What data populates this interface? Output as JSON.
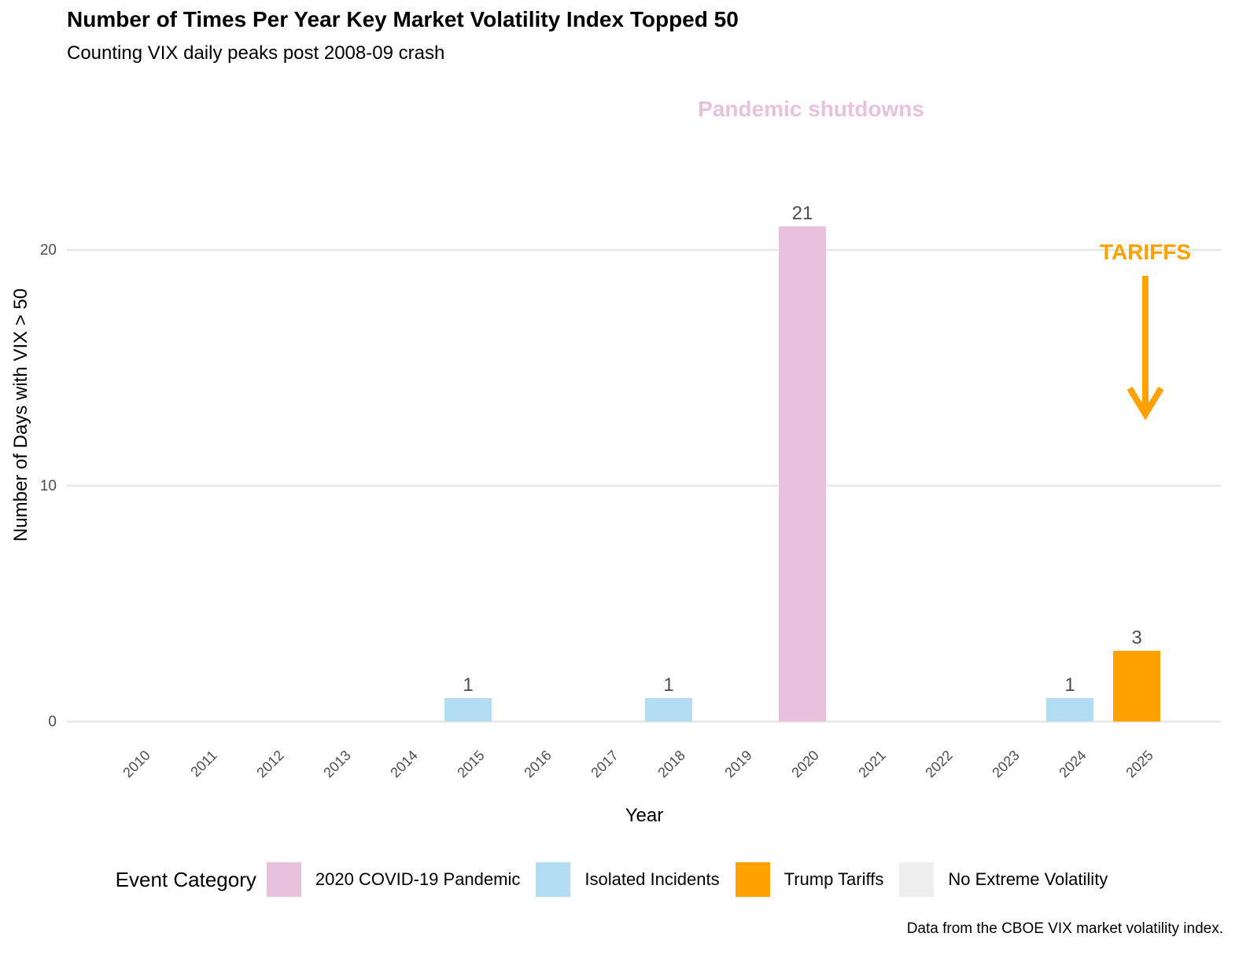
{
  "chart_data": {
    "type": "bar",
    "title": "Number of Times Per Year Key Market Volatility Index Topped 50",
    "subtitle": "Counting VIX daily peaks post 2008-09 crash",
    "xlabel": "Year",
    "ylabel": "Number of Days with VIX > 50",
    "ylim": [
      -1.2,
      25
    ],
    "yticks": [
      0,
      10,
      20
    ],
    "grid": "horizontal major gridlines",
    "categories": [
      "2010",
      "2011",
      "2012",
      "2013",
      "2014",
      "2015",
      "2016",
      "2017",
      "2018",
      "2019",
      "2020",
      "2021",
      "2022",
      "2023",
      "2024",
      "2025"
    ],
    "values": [
      0,
      0,
      0,
      0,
      0,
      1,
      0,
      0,
      1,
      0,
      21,
      0,
      0,
      0,
      1,
      3
    ],
    "category_group": [
      "No Extreme Volatility",
      "No Extreme Volatility",
      "No Extreme Volatility",
      "No Extreme Volatility",
      "No Extreme Volatility",
      "Isolated Incidents",
      "No Extreme Volatility",
      "No Extreme Volatility",
      "Isolated Incidents",
      "No Extreme Volatility",
      "2020 COVID-19 Pandemic",
      "No Extreme Volatility",
      "No Extreme Volatility",
      "No Extreme Volatility",
      "Isolated Incidents",
      "Trump Tariffs"
    ],
    "bar_labels": {
      "2015": "1",
      "2018": "1",
      "2020": "21",
      "2024": "1",
      "2025": "3"
    },
    "colors": {
      "2020 COVID-19 Pandemic": "#e8c2dc",
      "Isolated Incidents": "#b3ddf2",
      "Trump Tariffs": "#ffa200",
      "No Extreme Volatility": "#eeeeee"
    },
    "annotations": [
      {
        "text": "Pandemic shutdowns",
        "color": "#e8c2dc",
        "near": "2020"
      },
      {
        "text": "TARIFFS",
        "color": "#ffa200",
        "near": "2025",
        "arrow": "down"
      }
    ],
    "legend": {
      "title": "Event Category",
      "position": "bottom",
      "items": [
        "2020 COVID-19 Pandemic",
        "Isolated Incidents",
        "Trump Tariffs",
        "No Extreme Volatility"
      ]
    },
    "caption": "Data from the CBOE VIX market volatility index."
  }
}
